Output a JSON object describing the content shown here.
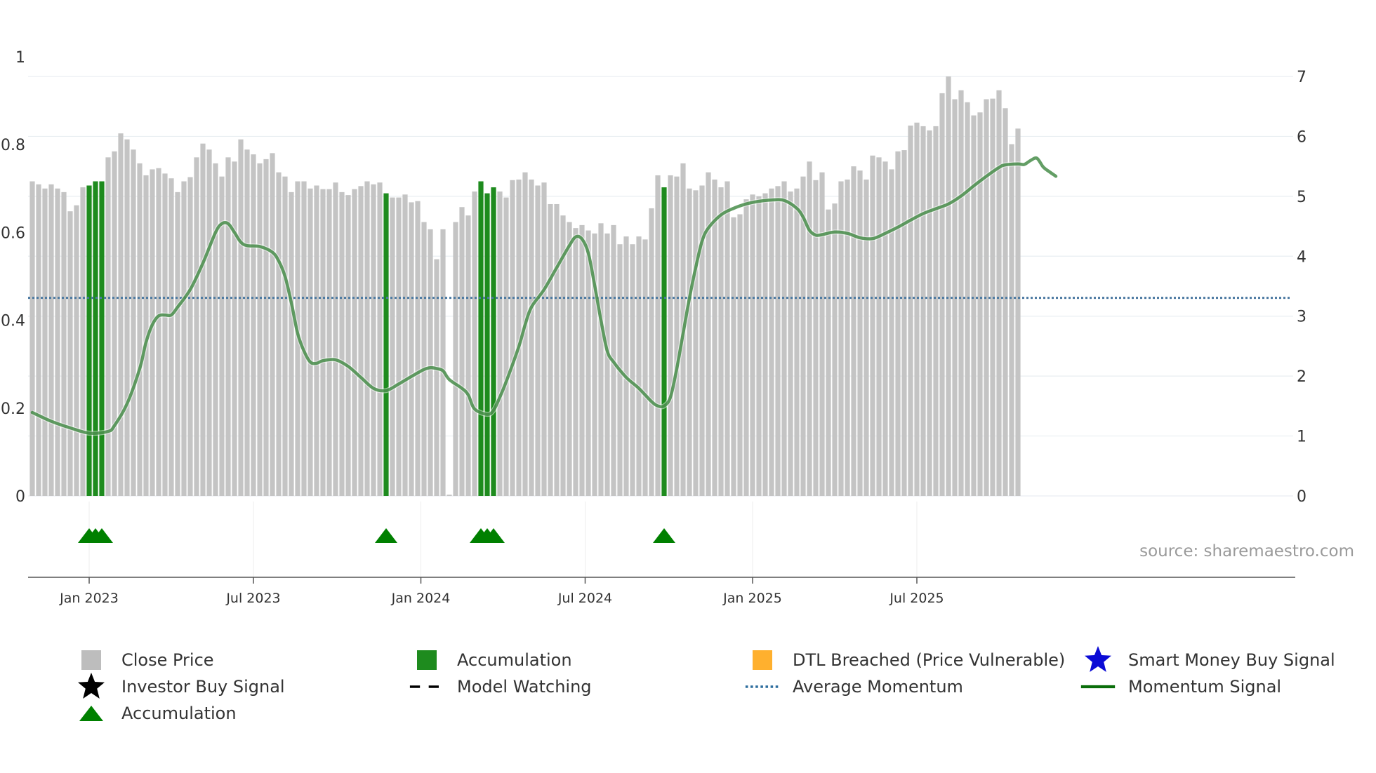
{
  "chart_data": {
    "type": "bar+line",
    "left_axis": {
      "ticks": [
        "0",
        "0.2",
        "0.4",
        "0.6",
        "0.8",
        "1"
      ],
      "range": [
        0,
        1
      ]
    },
    "right_axis": {
      "ticks": [
        "0",
        "1",
        "2",
        "3",
        "4",
        "5",
        "6",
        "7"
      ],
      "range": [
        0,
        7
      ]
    },
    "x_axis": {
      "tick_labels": [
        "Jan 2023",
        "Jul 2023",
        "Jan 2024",
        "Jul 2024",
        "Jan 2025",
        "Jul 2025"
      ],
      "tick_positions_weeks": [
        9,
        35,
        61.5,
        87.5,
        114,
        140
      ]
    },
    "series": [
      {
        "name": "Close Price",
        "axis": "right",
        "note": "weekly bars, index 0 = first week shown (about late Oct 2022)",
        "values": [
          5.25,
          5.2,
          5.13,
          5.2,
          5.13,
          5.07,
          4.75,
          4.85,
          5.15,
          5.18,
          5.25,
          5.25,
          5.65,
          5.75,
          6.05,
          5.95,
          5.78,
          5.55,
          5.35,
          5.45,
          5.47,
          5.38,
          5.3,
          5.07,
          5.25,
          5.32,
          5.65,
          5.88,
          5.78,
          5.55,
          5.33,
          5.65,
          5.58,
          5.95,
          5.78,
          5.7,
          5.55,
          5.62,
          5.72,
          5.4,
          5.33,
          5.07,
          5.25,
          5.25,
          5.13,
          5.18,
          5.12,
          5.12,
          5.23,
          5.07,
          5.02,
          5.12,
          5.17,
          5.25,
          5.2,
          5.23,
          5.05,
          4.98,
          4.98,
          5.03,
          4.9,
          4.92,
          4.57,
          4.45,
          3.95,
          4.45,
          0.02,
          4.57,
          4.82,
          4.68,
          5.08,
          5.25,
          5.05,
          5.15,
          5.08,
          4.98,
          5.27,
          5.28,
          5.4,
          5.28,
          5.18,
          5.23,
          4.87,
          4.87,
          4.68,
          4.57,
          4.47,
          4.52,
          4.43,
          4.38,
          4.55,
          4.38,
          4.52,
          4.2,
          4.33,
          4.2,
          4.33,
          4.28,
          4.8,
          5.35,
          5.15,
          5.35,
          5.33,
          5.55,
          5.13,
          5.1,
          5.18,
          5.4,
          5.28,
          5.15,
          5.25,
          4.65,
          4.7,
          4.95,
          5.03,
          5.0,
          5.05,
          5.13,
          5.17,
          5.25,
          5.08,
          5.13,
          5.33,
          5.58,
          5.27,
          5.4,
          4.78,
          4.88,
          5.25,
          5.28,
          5.5,
          5.43,
          5.28,
          5.68,
          5.65,
          5.58,
          5.45,
          5.75,
          5.77,
          6.18,
          6.23,
          6.17,
          6.1,
          6.17,
          6.72,
          7.0,
          6.62,
          6.77,
          6.57,
          6.35,
          6.4,
          6.62,
          6.63,
          6.77,
          6.47,
          5.87,
          6.13
        ]
      },
      {
        "name": "Accumulation",
        "axis": "right",
        "note": "green highlighted bars at week indices",
        "indices": [
          9,
          10,
          11,
          56,
          71,
          72,
          73,
          100
        ]
      },
      {
        "name": "Momentum Signal",
        "axis": "left",
        "points_week_value": [
          [
            0,
            0.19
          ],
          [
            3,
            0.17
          ],
          [
            6,
            0.155
          ],
          [
            9,
            0.143
          ],
          [
            12,
            0.147
          ],
          [
            13,
            0.16
          ],
          [
            15,
            0.21
          ],
          [
            17,
            0.29
          ],
          [
            18,
            0.35
          ],
          [
            19,
            0.39
          ],
          [
            20,
            0.41
          ],
          [
            21,
            0.412
          ],
          [
            22,
            0.412
          ],
          [
            23,
            0.43
          ],
          [
            25,
            0.47
          ],
          [
            27,
            0.53
          ],
          [
            29,
            0.6
          ],
          [
            30,
            0.62
          ],
          [
            31,
            0.62
          ],
          [
            32,
            0.6
          ],
          [
            33,
            0.578
          ],
          [
            34,
            0.57
          ],
          [
            36,
            0.568
          ],
          [
            38,
            0.555
          ],
          [
            39,
            0.535
          ],
          [
            40,
            0.5
          ],
          [
            41,
            0.44
          ],
          [
            42,
            0.37
          ],
          [
            43,
            0.33
          ],
          [
            44,
            0.305
          ],
          [
            45,
            0.302
          ],
          [
            46,
            0.308
          ],
          [
            48,
            0.31
          ],
          [
            50,
            0.295
          ],
          [
            52,
            0.27
          ],
          [
            54,
            0.245
          ],
          [
            56,
            0.24
          ],
          [
            58,
            0.255
          ],
          [
            60,
            0.272
          ],
          [
            62,
            0.288
          ],
          [
            63,
            0.292
          ],
          [
            64,
            0.29
          ],
          [
            65,
            0.285
          ],
          [
            66,
            0.265
          ],
          [
            68,
            0.245
          ],
          [
            69,
            0.23
          ],
          [
            70,
            0.198
          ],
          [
            72,
            0.186
          ],
          [
            73,
            0.195
          ],
          [
            74,
            0.225
          ],
          [
            75,
            0.26
          ],
          [
            77,
            0.34
          ],
          [
            78,
            0.39
          ],
          [
            79,
            0.43
          ],
          [
            81,
            0.47
          ],
          [
            83,
            0.52
          ],
          [
            85,
            0.57
          ],
          [
            86,
            0.59
          ],
          [
            87,
            0.585
          ],
          [
            88,
            0.553
          ],
          [
            89,
            0.48
          ],
          [
            90,
            0.4
          ],
          [
            91,
            0.33
          ],
          [
            92,
            0.305
          ],
          [
            94,
            0.27
          ],
          [
            96,
            0.245
          ],
          [
            98,
            0.215
          ],
          [
            99,
            0.205
          ],
          [
            100,
            0.205
          ],
          [
            101,
            0.225
          ],
          [
            102,
            0.29
          ],
          [
            103,
            0.37
          ],
          [
            104,
            0.45
          ],
          [
            105,
            0.52
          ],
          [
            106,
            0.58
          ],
          [
            107,
            0.61
          ],
          [
            109,
            0.64
          ],
          [
            111,
            0.655
          ],
          [
            113,
            0.665
          ],
          [
            115,
            0.671
          ],
          [
            117,
            0.674
          ],
          [
            119,
            0.673
          ],
          [
            121,
            0.655
          ],
          [
            122,
            0.635
          ],
          [
            123,
            0.605
          ],
          [
            124,
            0.594
          ],
          [
            125,
            0.595
          ],
          [
            127,
            0.601
          ],
          [
            129,
            0.598
          ],
          [
            131,
            0.588
          ],
          [
            133,
            0.586
          ],
          [
            135,
            0.598
          ],
          [
            137,
            0.612
          ],
          [
            139,
            0.628
          ],
          [
            141,
            0.643
          ],
          [
            143,
            0.654
          ],
          [
            145,
            0.665
          ],
          [
            147,
            0.683
          ],
          [
            149,
            0.706
          ],
          [
            151,
            0.728
          ],
          [
            153,
            0.748
          ],
          [
            154,
            0.754
          ],
          [
            156,
            0.756
          ],
          [
            157,
            0.755
          ],
          [
            158,
            0.764
          ],
          [
            159,
            0.769
          ],
          [
            160,
            0.749
          ],
          [
            161,
            0.738
          ],
          [
            162,
            0.728
          ]
        ]
      },
      {
        "name": "Average Momentum",
        "axis": "left",
        "value": 0.451,
        "style": "dotted"
      }
    ],
    "markers": [
      {
        "name": "Accumulation",
        "shape": "triangle-up",
        "week_indices": [
          9,
          10,
          11,
          56,
          71,
          72,
          73,
          100
        ]
      }
    ],
    "annotations": [
      "source: sharemaestro.com"
    ],
    "grid": true,
    "legend_placement": "bottom"
  },
  "colors": {
    "close_price": "#c4c4c4",
    "accumulation": "#1e8b1e",
    "momentum": "#2f7d32",
    "average_momentum": "#4a78a0",
    "dtl_breached": "#ffb02e",
    "smart_money": "#0b0bd6",
    "investor_buy": "#000000",
    "source_text": "#9a9a9a"
  },
  "source_text": "source: sharemaestro.com",
  "legend": {
    "close_price": "Close Price",
    "accumulation_bar": "Accumulation",
    "dtl_breached": "DTL Breached (Price Vulnerable)",
    "smart_money": "Smart Money Buy Signal",
    "investor_buy": "Investor Buy Signal",
    "model_watching": "Model Watching",
    "average_momentum": "Average Momentum",
    "momentum_signal": "Momentum Signal",
    "accumulation_marker": "Accumulation"
  }
}
